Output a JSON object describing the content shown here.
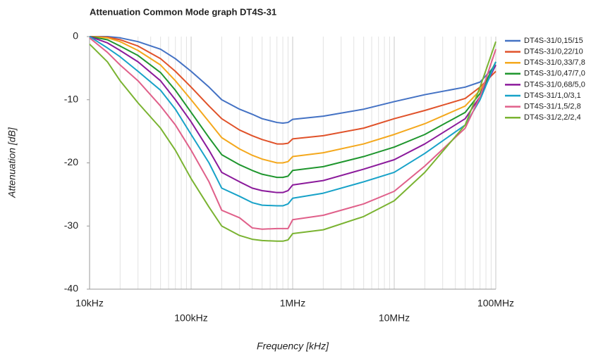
{
  "chart_data": {
    "type": "line",
    "title": "Attenuation Common Mode graph DT4S-31",
    "x_label": "Frequency [kHz]",
    "y_label": "Attenuation [dB]",
    "xscale": "log",
    "grid": "x",
    "legend": "right",
    "x": [
      10,
      15,
      20,
      30,
      50,
      70,
      100,
      150,
      200,
      300,
      400,
      500,
      700,
      800,
      900,
      1000,
      2000,
      5000,
      10000,
      20000,
      50000,
      70000,
      100000
    ],
    "xlim": [
      10,
      100000
    ],
    "xticks": [
      {
        "value": 10,
        "label": "10kHz"
      },
      {
        "value": 100,
        "label": "100kHz"
      },
      {
        "value": 1000,
        "label": "1MHz"
      },
      {
        "value": 10000,
        "label": "10MHz"
      },
      {
        "value": 100000,
        "label": "100MHz"
      }
    ],
    "ylim": [
      -40,
      0
    ],
    "yticks": [
      0,
      -10,
      -20,
      -30,
      -40
    ],
    "series": [
      {
        "name": "DT4S-31/0,15/15",
        "color": "#4472c4",
        "values": [
          0,
          0,
          -0.2,
          -0.8,
          -2,
          -3.5,
          -5.5,
          -8,
          -10,
          -11.5,
          -12.3,
          -13,
          -13.6,
          -13.7,
          -13.6,
          -13.1,
          -12.6,
          -11.5,
          -10.3,
          -9.2,
          -8,
          -7.2,
          -4.5
        ]
      },
      {
        "name": "DT4S-31/0,22/10",
        "color": "#e0522a",
        "values": [
          0,
          -0.1,
          -0.5,
          -1.5,
          -3.5,
          -5.5,
          -8,
          -11,
          -13,
          -14.8,
          -15.7,
          -16.3,
          -17,
          -17,
          -16.9,
          -16.2,
          -15.7,
          -14.5,
          -13,
          -11.7,
          -9.8,
          -8,
          -5.5
        ]
      },
      {
        "name": "DT4S-31/0,33/7,8",
        "color": "#f4a81d",
        "values": [
          0,
          -0.2,
          -0.8,
          -2.2,
          -4.5,
          -7,
          -10,
          -13.5,
          -16,
          -17.8,
          -18.8,
          -19.4,
          -20,
          -20,
          -19.8,
          -19,
          -18.4,
          -17,
          -15.5,
          -13.8,
          -11,
          -8.5,
          -4.5
        ]
      },
      {
        "name": "DT4S-31/0,47/7,0",
        "color": "#1f962e",
        "values": [
          0,
          -0.5,
          -1.5,
          -3,
          -5.7,
          -8.5,
          -12,
          -16,
          -18.7,
          -20.3,
          -21.2,
          -21.8,
          -22.3,
          -22.3,
          -22.1,
          -21.2,
          -20.6,
          -19,
          -17.5,
          -15.5,
          -12,
          -9,
          -4
        ]
      },
      {
        "name": "DT4S-31/0,68/5,0",
        "color": "#8b1a9b",
        "values": [
          0,
          -1,
          -2.2,
          -4,
          -7,
          -10,
          -13.5,
          -18,
          -21.5,
          -23,
          -24,
          -24.4,
          -24.7,
          -24.7,
          -24.4,
          -23.5,
          -22.8,
          -21,
          -19.5,
          -17,
          -13,
          -9.5,
          -4.5
        ]
      },
      {
        "name": "DT4S-31/1,0/3,1",
        "color": "#17a2c8",
        "values": [
          0,
          -1.8,
          -3.2,
          -5.5,
          -8.5,
          -11.5,
          -15.5,
          -20,
          -24,
          -25.3,
          -26.3,
          -26.7,
          -26.8,
          -26.8,
          -26.5,
          -25.6,
          -24.8,
          -23,
          -21.5,
          -18.5,
          -14,
          -10,
          -4
        ]
      },
      {
        "name": "DT4S-31/1,5/2,8",
        "color": "#e0608a",
        "values": [
          -0.2,
          -2.5,
          -4.5,
          -7,
          -11,
          -14,
          -18,
          -23,
          -27.5,
          -28.7,
          -30.3,
          -30.5,
          -30.4,
          -30.4,
          -30.4,
          -29,
          -28.3,
          -26.5,
          -24.5,
          -20.5,
          -14.5,
          -9.5,
          -2
        ]
      },
      {
        "name": "DT4S-31/2,2/2,4",
        "color": "#7ab331",
        "values": [
          -1.2,
          -4,
          -7,
          -10.5,
          -14.5,
          -18,
          -22.5,
          -27,
          -30,
          -31.5,
          -32.1,
          -32.3,
          -32.4,
          -32.4,
          -32.2,
          -31.2,
          -30.6,
          -28.5,
          -26,
          -21.5,
          -14,
          -8,
          -0.8
        ]
      }
    ]
  }
}
